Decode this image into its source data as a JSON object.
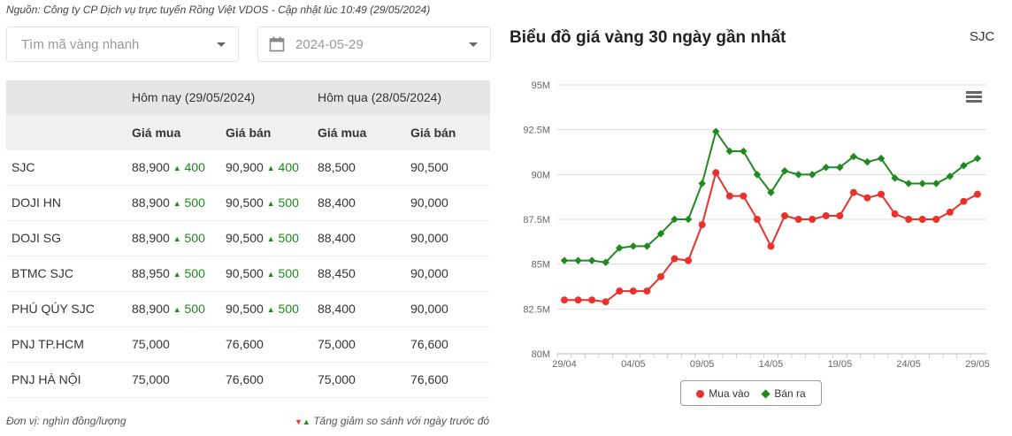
{
  "source": "Nguồn: Công ty CP Dịch vụ trực tuyến Rồng Việt VDOS - Cập nhật lúc 10:49 (29/05/2024)",
  "search": {
    "placeholder": "Tìm mã vàng nhanh"
  },
  "date": {
    "value": "2024-05-29"
  },
  "table": {
    "today": "Hôm nay (29/05/2024)",
    "yesterday": "Hôm qua (28/05/2024)",
    "cols": [
      "Giá mua",
      "Giá bán",
      "Giá mua",
      "Giá bán"
    ],
    "rows": [
      {
        "name": "SJC",
        "buy": "88,900",
        "buy_chg": "400",
        "sell": "90,900",
        "sell_chg": "400",
        "ybuy": "88,500",
        "ysell": "90,500"
      },
      {
        "name": "DOJI HN",
        "buy": "88,900",
        "buy_chg": "500",
        "sell": "90,500",
        "sell_chg": "500",
        "ybuy": "88,400",
        "ysell": "90,000"
      },
      {
        "name": "DOJI SG",
        "buy": "88,900",
        "buy_chg": "500",
        "sell": "90,500",
        "sell_chg": "500",
        "ybuy": "88,400",
        "ysell": "90,000"
      },
      {
        "name": "BTMC SJC",
        "buy": "88,950",
        "buy_chg": "500",
        "sell": "90,500",
        "sell_chg": "500",
        "ybuy": "88,450",
        "ysell": "90,000"
      },
      {
        "name": "PHÚ QÚY SJC",
        "buy": "88,900",
        "buy_chg": "500",
        "sell": "90,500",
        "sell_chg": "500",
        "ybuy": "88,400",
        "ysell": "90,000"
      },
      {
        "name": "PNJ TP.HCM",
        "buy": "75,000",
        "buy_chg": null,
        "sell": "76,600",
        "sell_chg": null,
        "ybuy": "75,000",
        "ysell": "76,600"
      },
      {
        "name": "PNJ HÀ NỘI",
        "buy": "75,000",
        "buy_chg": null,
        "sell": "76,600",
        "sell_chg": null,
        "ybuy": "75,000",
        "ysell": "76,600"
      }
    ]
  },
  "footer": {
    "unit": "Đơn vị: nghìn đồng/lượng",
    "note": "Tăng giảm so sánh với ngày trước đó"
  },
  "chart_title": "Biểu đồ giá vàng 30 ngày gần nhất",
  "chart_code": "SJC",
  "chart_data": {
    "type": "line",
    "x": [
      "29/04",
      "30/04",
      "01/05",
      "02/05",
      "03/05",
      "04/05",
      "05/05",
      "06/05",
      "07/05",
      "08/05",
      "09/05",
      "10/05",
      "11/05",
      "12/05",
      "13/05",
      "14/05",
      "15/05",
      "16/05",
      "17/05",
      "18/05",
      "19/05",
      "20/05",
      "21/05",
      "22/05",
      "23/05",
      "24/05",
      "25/05",
      "26/05",
      "27/05",
      "28/05",
      "29/05"
    ],
    "xticks": [
      "29/04",
      "04/05",
      "09/05",
      "14/05",
      "19/05",
      "24/05",
      "29/05"
    ],
    "yticks": [
      "80M",
      "82.5M",
      "85M",
      "87.5M",
      "90M",
      "92.5M",
      "95M"
    ],
    "ylim": [
      80,
      95
    ],
    "series": [
      {
        "name": "Mua vào",
        "color": "#e8322b",
        "values": [
          83.0,
          83.0,
          83.0,
          82.9,
          83.5,
          83.5,
          83.5,
          84.3,
          85.3,
          85.2,
          87.2,
          90.1,
          88.8,
          88.8,
          87.5,
          86.0,
          87.7,
          87.5,
          87.5,
          87.7,
          87.7,
          89.0,
          88.7,
          88.9,
          87.8,
          87.5,
          87.5,
          87.5,
          87.9,
          88.5,
          88.9
        ]
      },
      {
        "name": "Bán ra",
        "color": "#1f8a1f",
        "values": [
          85.2,
          85.2,
          85.2,
          85.1,
          85.9,
          86.0,
          86.0,
          86.7,
          87.5,
          87.5,
          89.5,
          92.4,
          91.3,
          91.3,
          90.0,
          89.0,
          90.2,
          90.0,
          90.0,
          90.4,
          90.4,
          91.0,
          90.7,
          90.9,
          89.8,
          89.5,
          89.5,
          89.5,
          89.9,
          90.5,
          90.9
        ]
      }
    ]
  }
}
